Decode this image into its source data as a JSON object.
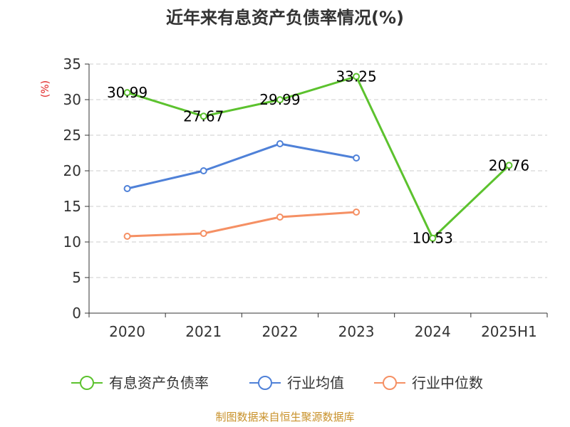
{
  "chart_data": {
    "type": "line",
    "title": "近年来有息资产负债率情况(%)",
    "ylabel": "(%)",
    "categories": [
      "2020",
      "2021",
      "2022",
      "2023",
      "2024",
      "2025H1"
    ],
    "ylim": [
      0,
      35
    ],
    "yticks": [
      "0",
      "5",
      "10",
      "15",
      "20",
      "25",
      "30",
      "35"
    ],
    "grid": true,
    "legend_position": "bottom",
    "series": [
      {
        "name": "有息资产负债率",
        "color": "#5cc22e",
        "values": [
          30.99,
          27.67,
          29.99,
          33.25,
          10.53,
          20.76
        ],
        "labels": [
          "30.99",
          "27.67",
          "29.99",
          "33.25",
          "10.53",
          "20.76"
        ]
      },
      {
        "name": "行业均值",
        "color": "#4f81d8",
        "values": [
          17.5,
          20.0,
          23.8,
          21.8,
          null,
          null
        ]
      },
      {
        "name": "行业中位数",
        "color": "#f59064",
        "values": [
          10.8,
          11.2,
          13.5,
          14.2,
          null,
          null
        ]
      }
    ],
    "source": "制图数据来自恒生聚源数据库"
  }
}
